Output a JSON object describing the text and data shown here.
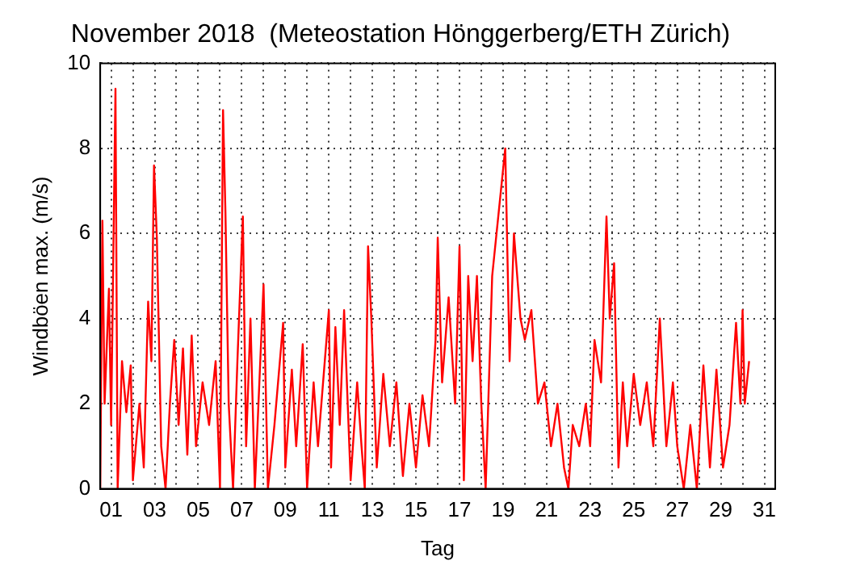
{
  "chart_data": {
    "type": "line",
    "title": "November 2018  (Meteostation Hönggerberg/ETH Zürich)",
    "xlabel": "Tag",
    "ylabel": "Windböen max. (m/s)",
    "xlim": [
      0.5,
      31.5
    ],
    "ylim": [
      0,
      10
    ],
    "yticks": [
      0,
      2,
      4,
      6,
      8,
      10
    ],
    "xticks": [
      {
        "value": 1,
        "label": "01"
      },
      {
        "value": 2,
        "label": null
      },
      {
        "value": 3,
        "label": "03"
      },
      {
        "value": 4,
        "label": null
      },
      {
        "value": 5,
        "label": "05"
      },
      {
        "value": 6,
        "label": null
      },
      {
        "value": 7,
        "label": "07"
      },
      {
        "value": 8,
        "label": null
      },
      {
        "value": 9,
        "label": "09"
      },
      {
        "value": 10,
        "label": null
      },
      {
        "value": 11,
        "label": "11"
      },
      {
        "value": 12,
        "label": null
      },
      {
        "value": 13,
        "label": "13"
      },
      {
        "value": 14,
        "label": null
      },
      {
        "value": 15,
        "label": "15"
      },
      {
        "value": 16,
        "label": null
      },
      {
        "value": 17,
        "label": "17"
      },
      {
        "value": 18,
        "label": null
      },
      {
        "value": 19,
        "label": "19"
      },
      {
        "value": 20,
        "label": null
      },
      {
        "value": 21,
        "label": "21"
      },
      {
        "value": 22,
        "label": null
      },
      {
        "value": 23,
        "label": "23"
      },
      {
        "value": 24,
        "label": null
      },
      {
        "value": 25,
        "label": "25"
      },
      {
        "value": 26,
        "label": null
      },
      {
        "value": 27,
        "label": "27"
      },
      {
        "value": 28,
        "label": null
      },
      {
        "value": 29,
        "label": "29"
      },
      {
        "value": 30,
        "label": null
      },
      {
        "value": 31,
        "label": "31"
      }
    ],
    "grid": true,
    "legend": false,
    "marker": "none",
    "line_style": "solid",
    "x": [
      0.5,
      0.6,
      0.7,
      0.9,
      1.0,
      1.2,
      1.3,
      1.5,
      1.7,
      1.9,
      2.0,
      2.3,
      2.5,
      2.7,
      2.85,
      2.97,
      3.1,
      3.3,
      3.5,
      3.7,
      3.9,
      4.1,
      4.3,
      4.5,
      4.7,
      4.9,
      5.2,
      5.5,
      5.8,
      6.0,
      6.14,
      6.25,
      6.4,
      6.6,
      6.8,
      7.05,
      7.2,
      7.4,
      7.6,
      8.0,
      8.2,
      8.5,
      8.9,
      9.0,
      9.3,
      9.5,
      9.8,
      10.0,
      10.3,
      10.5,
      11.0,
      11.1,
      11.3,
      11.5,
      11.7,
      12.0,
      12.3,
      12.5,
      12.65,
      12.8,
      12.95,
      13.2,
      13.5,
      13.8,
      14.1,
      14.4,
      14.7,
      15.0,
      15.3,
      15.6,
      15.9,
      16.0,
      16.2,
      16.5,
      16.8,
      17.0,
      17.2,
      17.4,
      17.6,
      17.8,
      18.0,
      18.2,
      18.5,
      18.8,
      19.1,
      19.3,
      19.5,
      19.8,
      20.0,
      20.3,
      20.6,
      20.9,
      21.2,
      21.5,
      21.8,
      22.0,
      22.2,
      22.5,
      22.8,
      23.0,
      23.2,
      23.5,
      23.75,
      23.9,
      24.1,
      24.3,
      24.5,
      24.7,
      25.0,
      25.3,
      25.6,
      25.9,
      26.2,
      26.5,
      26.8,
      27.0,
      27.3,
      27.6,
      27.9,
      28.2,
      28.5,
      28.8,
      29.1,
      29.4,
      29.7,
      29.9,
      30.0,
      30.1,
      30.3
    ],
    "series": [
      {
        "color": "#ff0000",
        "values": [
          0,
          6.3,
          2,
          4.7,
          1.5,
          9.4,
          0,
          3,
          1.8,
          2.9,
          0.2,
          2,
          0.5,
          4.4,
          3,
          7.6,
          5.9,
          1,
          0,
          2,
          3.5,
          1.5,
          3.3,
          0.8,
          3.6,
          1,
          2.5,
          1.5,
          3,
          0,
          8.9,
          6.5,
          2,
          0,
          3,
          6.4,
          1,
          4,
          0,
          4.8,
          0,
          1.5,
          3.9,
          0.5,
          2.8,
          1,
          3.4,
          0,
          2.5,
          1,
          4.2,
          0.5,
          3.8,
          1.5,
          4.2,
          0.2,
          2.5,
          1,
          0,
          5.7,
          4,
          0.5,
          2.7,
          1,
          2.5,
          0.3,
          2,
          0.5,
          2.2,
          1,
          3.5,
          5.9,
          2.5,
          4.5,
          2,
          5.7,
          0.2,
          5,
          3,
          5,
          2,
          0,
          5,
          6.5,
          8,
          3,
          6,
          4,
          3.5,
          4.2,
          2,
          2.5,
          1,
          2,
          0.5,
          0,
          1.5,
          1,
          2,
          1,
          3.5,
          2.5,
          6.4,
          4,
          5.3,
          0.5,
          2.5,
          1,
          2.7,
          1.5,
          2.5,
          1,
          4,
          1,
          2.5,
          1,
          0,
          1.5,
          0,
          2.9,
          0.5,
          2.8,
          0.5,
          1.5,
          3.9,
          2,
          4.2,
          2,
          3
        ]
      }
    ]
  }
}
